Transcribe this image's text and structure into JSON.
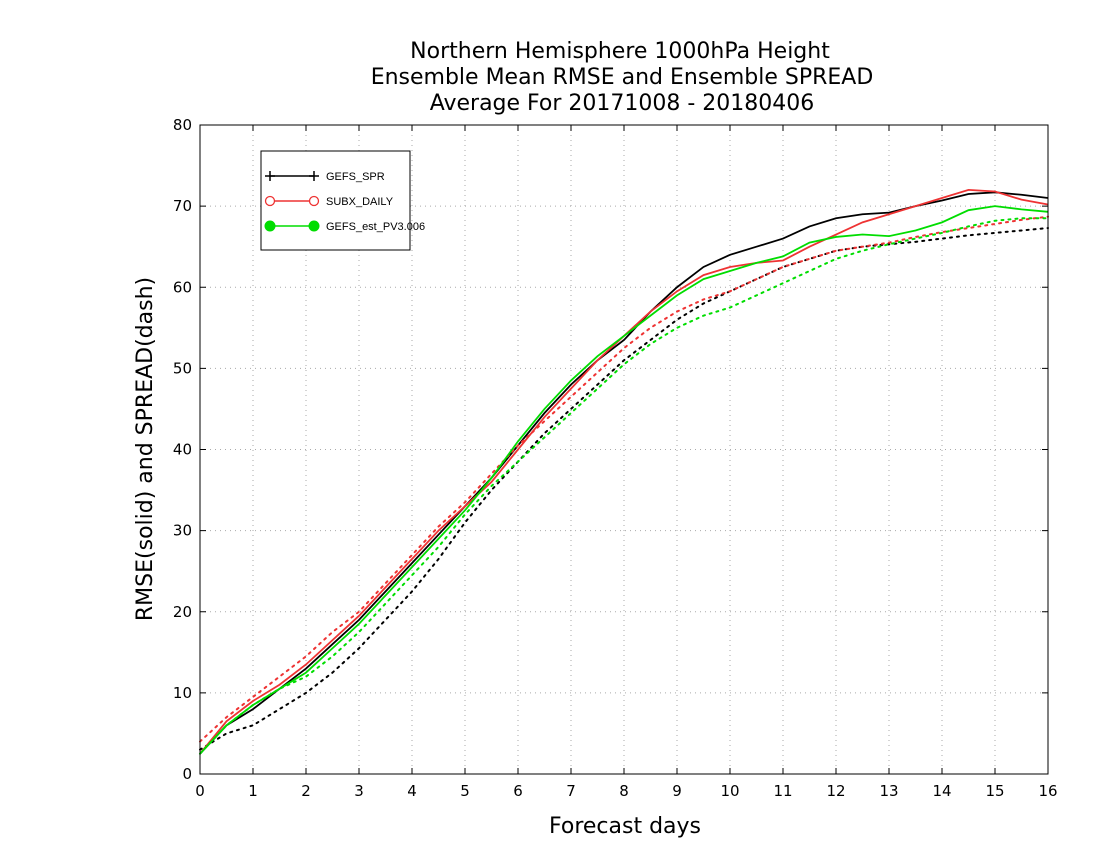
{
  "chart_data": {
    "type": "line",
    "title": [
      "Northern Hemisphere 1000hPa Height",
      "Ensemble Mean RMSE and Ensemble SPREAD",
      "Average For 20171008 - 20180406"
    ],
    "xlabel": "Forecast days",
    "ylabel": "RMSE(solid) and SPREAD(dash)",
    "xlim": [
      0,
      16
    ],
    "ylim": [
      0,
      80
    ],
    "x_ticks": [
      0,
      1,
      2,
      3,
      4,
      5,
      6,
      7,
      8,
      9,
      10,
      11,
      12,
      13,
      14,
      15,
      16
    ],
    "y_ticks": [
      0,
      10,
      20,
      30,
      40,
      50,
      60,
      70,
      80
    ],
    "grid": true,
    "legend_position": "top-left",
    "x": [
      0,
      0.5,
      1,
      1.5,
      2,
      2.5,
      3,
      3.5,
      4,
      4.5,
      5,
      5.5,
      6,
      6.5,
      7,
      7.5,
      8,
      8.5,
      9,
      9.5,
      10,
      10.5,
      11,
      11.5,
      12,
      12.5,
      13,
      13.5,
      14,
      14.5,
      15,
      15.5,
      16
    ],
    "series": [
      {
        "name": "GEFS_SPR",
        "color": "#000000",
        "marker": "plus",
        "rmse": [
          2.5,
          6,
          8,
          10.5,
          13,
          16,
          19,
          22.5,
          26,
          29.5,
          33,
          36.5,
          40.5,
          44.5,
          48,
          51,
          53.5,
          57,
          60,
          62.5,
          64,
          65,
          66,
          67.5,
          68.5,
          69,
          69.2,
          70,
          70.7,
          71.5,
          71.7,
          71.4,
          71
        ],
        "spread": [
          3,
          5,
          6,
          8,
          10,
          12.5,
          15.5,
          19,
          22.5,
          26.5,
          31,
          35,
          38.5,
          42,
          45,
          48,
          51,
          53.5,
          56,
          58,
          59.5,
          61,
          62.5,
          63.5,
          64.5,
          65,
          65.3,
          65.6,
          66,
          66.4,
          66.7,
          67,
          67.3
        ]
      },
      {
        "name": "SUBX_DAILY",
        "color": "#ee3333",
        "marker": "open-circle",
        "rmse": [
          2.5,
          6.5,
          9,
          11,
          13.5,
          16.5,
          19.5,
          23,
          26.5,
          30,
          33,
          36,
          40,
          44,
          47.5,
          51,
          54,
          57,
          59.5,
          61.5,
          62.5,
          63,
          63.3,
          65,
          66.5,
          68,
          69,
          70,
          71,
          72,
          71.8,
          70.8,
          70.2
        ],
        "spread": [
          4,
          7,
          9.5,
          12,
          14.5,
          17.5,
          20,
          23.5,
          27,
          30.5,
          33.5,
          37,
          40.5,
          43.5,
          46.5,
          49.5,
          52.5,
          55,
          57,
          58.5,
          59.5,
          61,
          62.5,
          63.5,
          64.5,
          65,
          65.5,
          66.2,
          66.8,
          67.3,
          67.8,
          68.3,
          68.7
        ]
      },
      {
        "name": "GEFS_est_PV3.006",
        "color": "#00dd00",
        "marker": "filled-circle",
        "rmse": [
          2.5,
          6,
          8.5,
          10.5,
          12.5,
          15.5,
          18.5,
          22,
          25.5,
          29,
          32.5,
          36.5,
          41,
          45,
          48.5,
          51.5,
          54,
          56.5,
          59,
          61,
          62,
          63,
          63.8,
          65.5,
          66.2,
          66.5,
          66.3,
          67,
          68,
          69.5,
          70,
          69.6,
          69.3
        ],
        "spread": [
          2.5,
          6,
          8.5,
          10.5,
          12,
          14.5,
          17.5,
          21,
          24.5,
          28,
          32,
          35.5,
          38.5,
          41.5,
          44.5,
          47.5,
          50.5,
          53,
          55,
          56.5,
          57.5,
          59,
          60.5,
          62,
          63.5,
          64.5,
          65.3,
          66,
          66.7,
          67.5,
          68.2,
          68.5,
          68.5
        ]
      }
    ]
  }
}
